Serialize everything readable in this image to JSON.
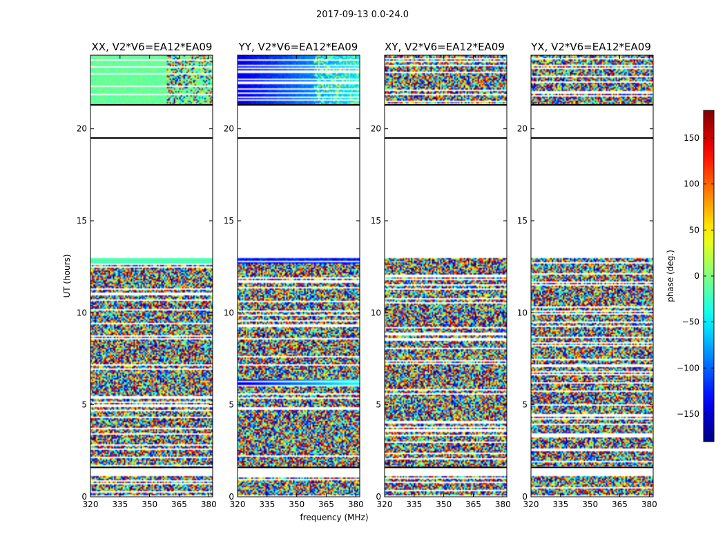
{
  "figure": {
    "suptitle": "2017-09-13 0.0-24.0",
    "xlabel": "frequency (MHz)",
    "ylabel": "UT (hours)",
    "colorbar_label": "phase (deg.)"
  },
  "chart_data": {
    "type": "heatmap",
    "colormap": "jet",
    "clim": [
      -180,
      180
    ],
    "colorbar_ticks": [
      "150",
      "100",
      "50",
      "0",
      "−50",
      "−100",
      "−150"
    ],
    "colorbar_tick_values": [
      150,
      100,
      50,
      0,
      -50,
      -100,
      -150
    ],
    "xlim": [
      320,
      382
    ],
    "ylim": [
      0,
      24
    ],
    "x_ticks": [
      320,
      335,
      350,
      365,
      380
    ],
    "y_ticks": [
      0,
      5,
      10,
      15,
      20
    ],
    "data_blocks_ut": [
      [
        0.1,
        1.1
      ],
      [
        1.6,
        9.5
      ],
      [
        9.5,
        13.0
      ],
      [
        21.3,
        24.0
      ]
    ],
    "panels": [
      {
        "title": "XX, V2*V6=EA12*EA09",
        "product": "XX"
      },
      {
        "title": "YY, V2*V6=EA12*EA09",
        "product": "YY"
      },
      {
        "title": "XY, V2*V6=EA12*EA09",
        "product": "XY"
      },
      {
        "title": "YX, V2*V6=EA12*EA09",
        "product": "YX"
      }
    ]
  }
}
